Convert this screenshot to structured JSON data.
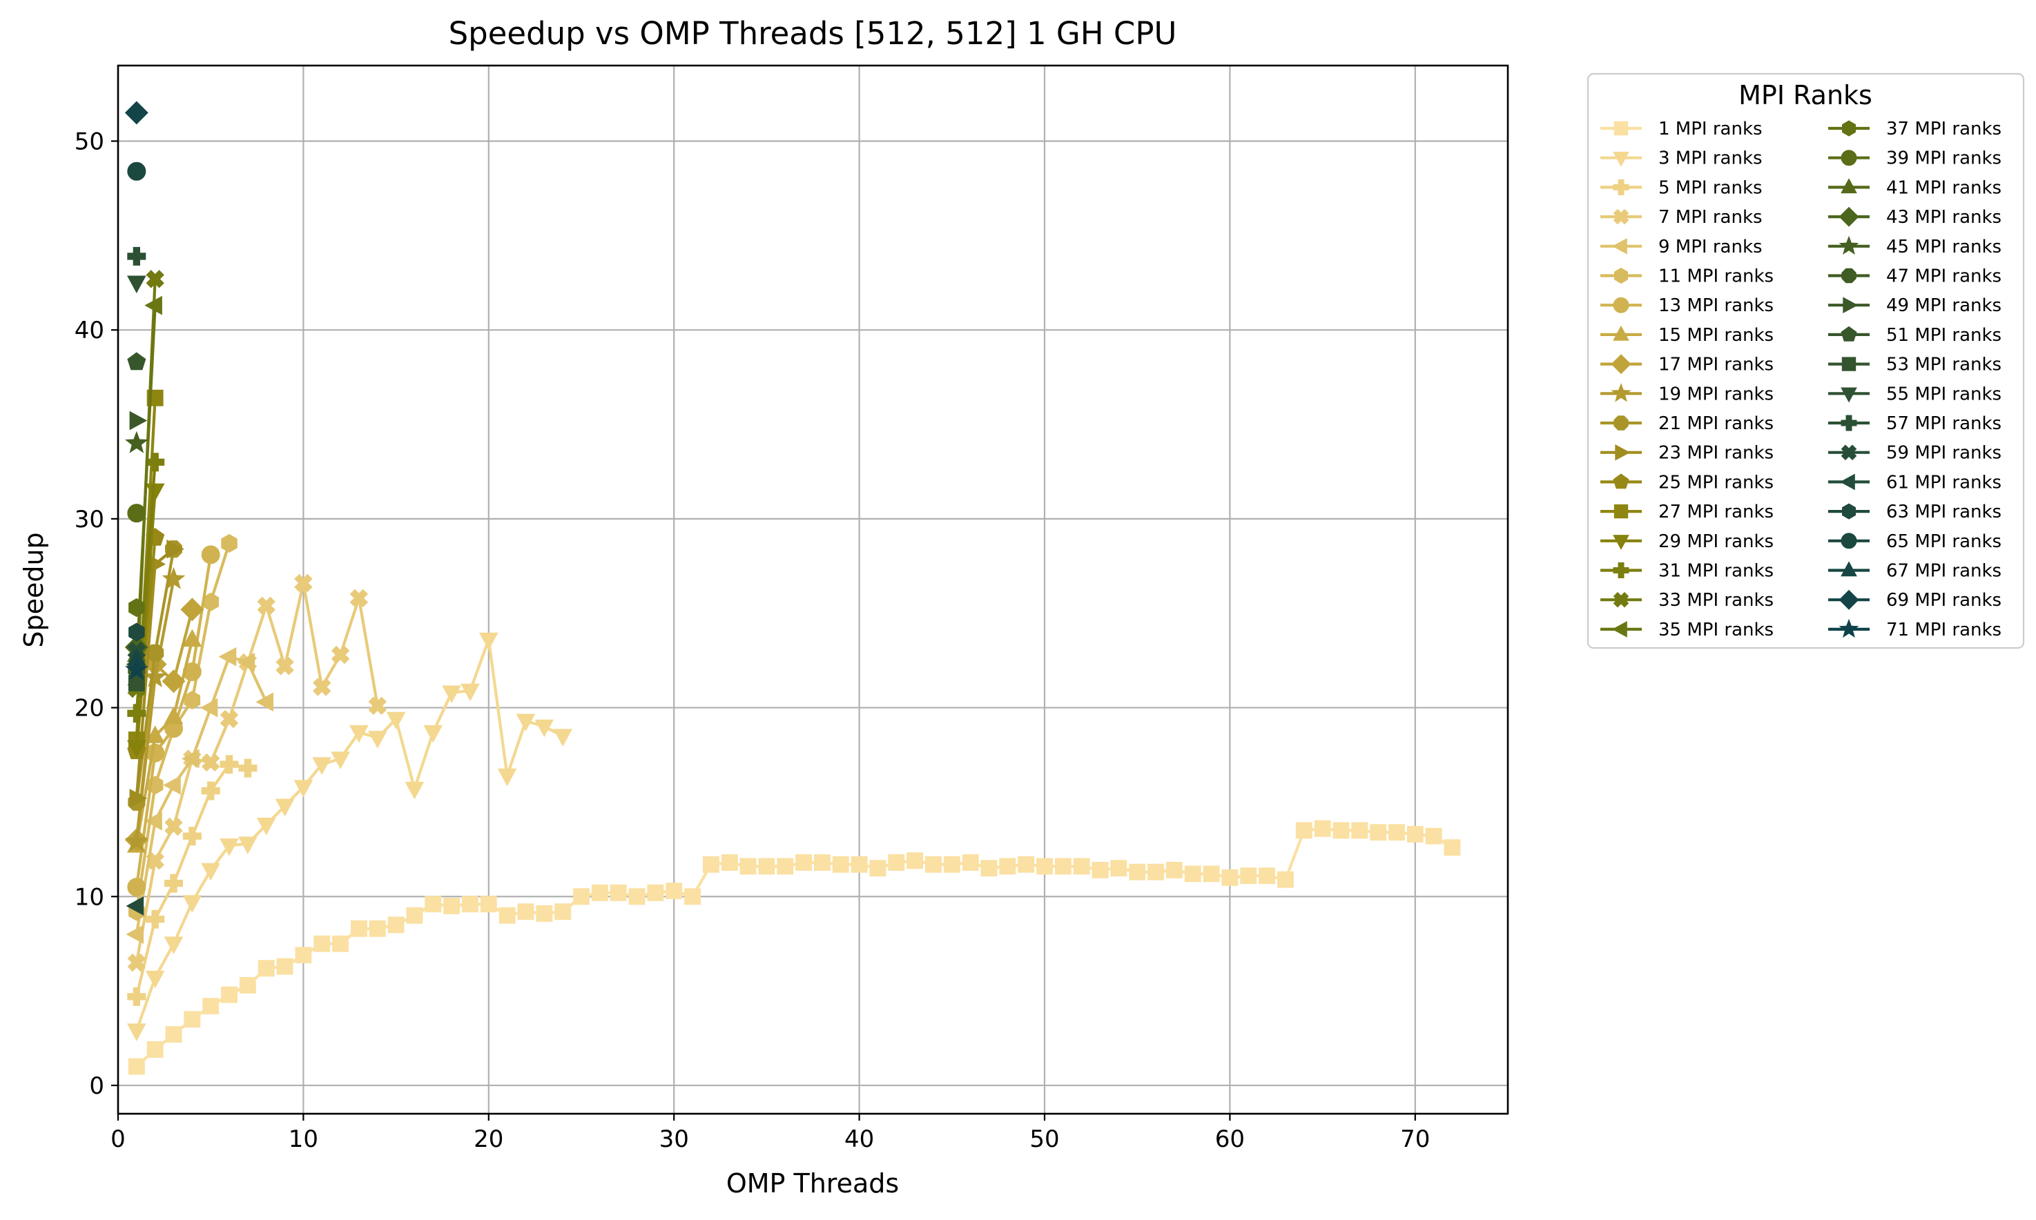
{
  "chart_data": {
    "type": "line",
    "title": "Speedup vs OMP Threads [512, 512] 1 GH CPU",
    "xlabel": "OMP Threads",
    "ylabel": "Speedup",
    "xlim": [
      0,
      75
    ],
    "ylim": [
      -1.5,
      54
    ],
    "xticks": [
      0,
      10,
      20,
      30,
      40,
      50,
      60,
      70
    ],
    "yticks": [
      0,
      10,
      20,
      30,
      40,
      50
    ],
    "grid": true,
    "legend": {
      "title": "MPI Ranks",
      "placement": "outside-right",
      "columns": 2
    },
    "series": [
      {
        "name": "1 MPI ranks",
        "color": "#fae0a2",
        "marker": "square",
        "x": [
          1,
          2,
          3,
          4,
          5,
          6,
          7,
          8,
          9,
          10,
          11,
          12,
          13,
          14,
          15,
          16,
          17,
          18,
          19,
          20,
          21,
          22,
          23,
          24,
          25,
          26,
          27,
          28,
          29,
          30,
          31,
          32,
          33,
          34,
          35,
          36,
          37,
          38,
          39,
          40,
          41,
          42,
          43,
          44,
          45,
          46,
          47,
          48,
          49,
          50,
          51,
          52,
          53,
          54,
          55,
          56,
          57,
          58,
          59,
          60,
          61,
          62,
          63,
          64,
          65,
          66,
          67,
          68,
          69,
          70,
          71,
          72
        ],
        "y": [
          1.0,
          1.9,
          2.7,
          3.5,
          4.2,
          4.8,
          5.3,
          6.2,
          6.3,
          6.9,
          7.5,
          7.5,
          8.3,
          8.3,
          8.5,
          9.0,
          9.6,
          9.5,
          9.6,
          9.6,
          9.0,
          9.2,
          9.1,
          9.2,
          10.0,
          10.2,
          10.2,
          10.0,
          10.2,
          10.3,
          10.0,
          11.7,
          11.8,
          11.6,
          11.6,
          11.6,
          11.8,
          11.8,
          11.7,
          11.7,
          11.5,
          11.8,
          11.9,
          11.7,
          11.7,
          11.8,
          11.5,
          11.6,
          11.7,
          11.6,
          11.6,
          11.6,
          11.4,
          11.5,
          11.3,
          11.3,
          11.4,
          11.2,
          11.2,
          11.0,
          11.1,
          11.1,
          10.9,
          13.5,
          13.6,
          13.5,
          13.5,
          13.4,
          13.4,
          13.3,
          13.2,
          12.6
        ]
      },
      {
        "name": "3 MPI ranks",
        "color": "#f4d890",
        "marker": "triangle-down",
        "x": [
          1,
          2,
          3,
          4,
          5,
          6,
          7,
          8,
          9,
          10,
          11,
          12,
          13,
          14,
          15,
          16,
          17,
          18,
          19,
          20,
          21,
          22,
          23,
          24
        ],
        "y": [
          2.9,
          5.7,
          7.5,
          9.7,
          11.4,
          12.7,
          12.8,
          13.8,
          14.8,
          15.8,
          17.0,
          17.3,
          18.7,
          18.4,
          19.4,
          15.7,
          18.7,
          20.8,
          20.9,
          23.6,
          16.4,
          19.3,
          19.0,
          18.5
        ]
      },
      {
        "name": "5 MPI ranks",
        "color": "#efd184",
        "marker": "plus",
        "x": [
          1,
          2,
          3,
          4,
          5,
          6,
          7
        ],
        "y": [
          4.7,
          8.8,
          10.7,
          13.2,
          15.6,
          17.0,
          16.8
        ]
      },
      {
        "name": "7 MPI ranks",
        "color": "#e8ca79",
        "marker": "x-filled",
        "x": [
          1,
          2,
          3,
          4,
          5,
          6,
          7,
          8,
          9,
          10,
          11,
          12,
          13,
          14
        ],
        "y": [
          6.5,
          11.9,
          13.7,
          17.3,
          17.1,
          19.4,
          22.4,
          25.4,
          22.2,
          26.6,
          21.1,
          22.8,
          25.8,
          20.1
        ]
      },
      {
        "name": "9 MPI ranks",
        "color": "#e0c26c",
        "marker": "triangle-left",
        "x": [
          1,
          2,
          3,
          4,
          5,
          6,
          7,
          8
        ],
        "y": [
          8.0,
          14.0,
          15.9,
          17.3,
          20.0,
          22.7,
          22.4,
          20.3
        ]
      },
      {
        "name": "11 MPI ranks",
        "color": "#d8bb5e",
        "marker": "hexagon",
        "x": [
          1,
          2,
          3,
          4,
          5,
          6
        ],
        "y": [
          9.2,
          15.9,
          18.9,
          20.4,
          25.6,
          28.7
        ]
      },
      {
        "name": "13 MPI ranks",
        "color": "#d0b350",
        "marker": "circle",
        "x": [
          1,
          2,
          3,
          4,
          5
        ],
        "y": [
          10.5,
          17.6,
          18.9,
          21.9,
          28.1
        ]
      },
      {
        "name": "15 MPI ranks",
        "color": "#c8ab45",
        "marker": "triangle-up",
        "x": [
          1,
          2,
          3,
          4
        ],
        "y": [
          12.7,
          18.5,
          19.5,
          23.6
        ]
      },
      {
        "name": "17 MPI ranks",
        "color": "#c0a43a",
        "marker": "diamond",
        "x": [
          1,
          2,
          3,
          4
        ],
        "y": [
          13.0,
          22.3,
          21.4,
          25.2
        ]
      },
      {
        "name": "19 MPI ranks",
        "color": "#b39a30",
        "marker": "star",
        "x": [
          1,
          2,
          3
        ],
        "y": [
          12.9,
          21.6,
          26.8
        ]
      },
      {
        "name": "21 MPI ranks",
        "color": "#a99427",
        "marker": "octagon",
        "x": [
          1,
          2,
          3
        ],
        "y": [
          15.0,
          22.9,
          28.4
        ]
      },
      {
        "name": "23 MPI ranks",
        "color": "#a08d1f",
        "marker": "triangle-right",
        "x": [
          1,
          2,
          3
        ],
        "y": [
          15.2,
          27.6,
          28.4
        ]
      },
      {
        "name": "25 MPI ranks",
        "color": "#978817",
        "marker": "pentagon",
        "x": [
          1,
          2
        ],
        "y": [
          17.7,
          29.0
        ]
      },
      {
        "name": "27 MPI ranks",
        "color": "#8f8611",
        "marker": "square",
        "x": [
          1,
          2
        ],
        "y": [
          18.3,
          36.4
        ]
      },
      {
        "name": "29 MPI ranks",
        "color": "#86820c",
        "marker": "triangle-down",
        "x": [
          1,
          2
        ],
        "y": [
          17.9,
          31.5
        ]
      },
      {
        "name": "31 MPI ranks",
        "color": "#7c7e0e",
        "marker": "plus",
        "x": [
          1,
          2
        ],
        "y": [
          19.7,
          33.0
        ]
      },
      {
        "name": "33 MPI ranks",
        "color": "#727a10",
        "marker": "x-filled",
        "x": [
          1,
          2
        ],
        "y": [
          21.0,
          42.7
        ]
      },
      {
        "name": "35 MPI ranks",
        "color": "#6a7612",
        "marker": "triangle-left",
        "x": [
          1,
          2
        ],
        "y": [
          22.3,
          41.3
        ]
      },
      {
        "name": "37 MPI ranks",
        "color": "#627214",
        "marker": "hexagon",
        "x": [
          1
        ],
        "y": [
          25.3
        ]
      },
      {
        "name": "39 MPI ranks",
        "color": "#5b6e17",
        "marker": "circle",
        "x": [
          1
        ],
        "y": [
          30.3
        ]
      },
      {
        "name": "41 MPI ranks",
        "color": "#546a1a",
        "marker": "triangle-up",
        "x": [
          1
        ],
        "y": [
          22.8
        ]
      },
      {
        "name": "43 MPI ranks",
        "color": "#4b661d",
        "marker": "diamond",
        "x": [
          1
        ],
        "y": [
          23.2
        ]
      },
      {
        "name": "45 MPI ranks",
        "color": "#456020",
        "marker": "star",
        "x": [
          1
        ],
        "y": [
          34.0
        ]
      },
      {
        "name": "47 MPI ranks",
        "color": "#3f5c24",
        "marker": "octagon",
        "x": [
          1
        ],
        "y": [
          22.0
        ]
      },
      {
        "name": "49 MPI ranks",
        "color": "#3b5828",
        "marker": "triangle-right",
        "x": [
          1
        ],
        "y": [
          35.2
        ]
      },
      {
        "name": "51 MPI ranks",
        "color": "#37562c",
        "marker": "pentagon",
        "x": [
          1
        ],
        "y": [
          38.3
        ]
      },
      {
        "name": "53 MPI ranks",
        "color": "#33542f",
        "marker": "square",
        "x": [
          1
        ],
        "y": [
          21.3
        ]
      },
      {
        "name": "55 MPI ranks",
        "color": "#2f5232",
        "marker": "triangle-down",
        "x": [
          1
        ],
        "y": [
          42.5
        ]
      },
      {
        "name": "57 MPI ranks",
        "color": "#2b5034",
        "marker": "plus",
        "x": [
          1
        ],
        "y": [
          43.9
        ]
      },
      {
        "name": "59 MPI ranks",
        "color": "#274e37",
        "marker": "x-filled",
        "x": [
          1
        ],
        "y": [
          23.0
        ]
      },
      {
        "name": "61 MPI ranks",
        "color": "#234c3a",
        "marker": "triangle-left",
        "x": [
          1
        ],
        "y": [
          9.5
        ]
      },
      {
        "name": "63 MPI ranks",
        "color": "#1f4a3d",
        "marker": "hexagon",
        "x": [
          1
        ],
        "y": [
          24.0
        ]
      },
      {
        "name": "65 MPI ranks",
        "color": "#1b4840",
        "marker": "circle",
        "x": [
          1
        ],
        "y": [
          48.4
        ]
      },
      {
        "name": "67 MPI ranks",
        "color": "#174644",
        "marker": "triangle-up",
        "x": [
          1
        ],
        "y": [
          22.6
        ]
      },
      {
        "name": "69 MPI ranks",
        "color": "#134448",
        "marker": "diamond",
        "x": [
          1
        ],
        "y": [
          51.5
        ]
      },
      {
        "name": "71 MPI ranks",
        "color": "#10424b",
        "marker": "star",
        "x": [
          1
        ],
        "y": [
          22.0
        ]
      }
    ]
  }
}
